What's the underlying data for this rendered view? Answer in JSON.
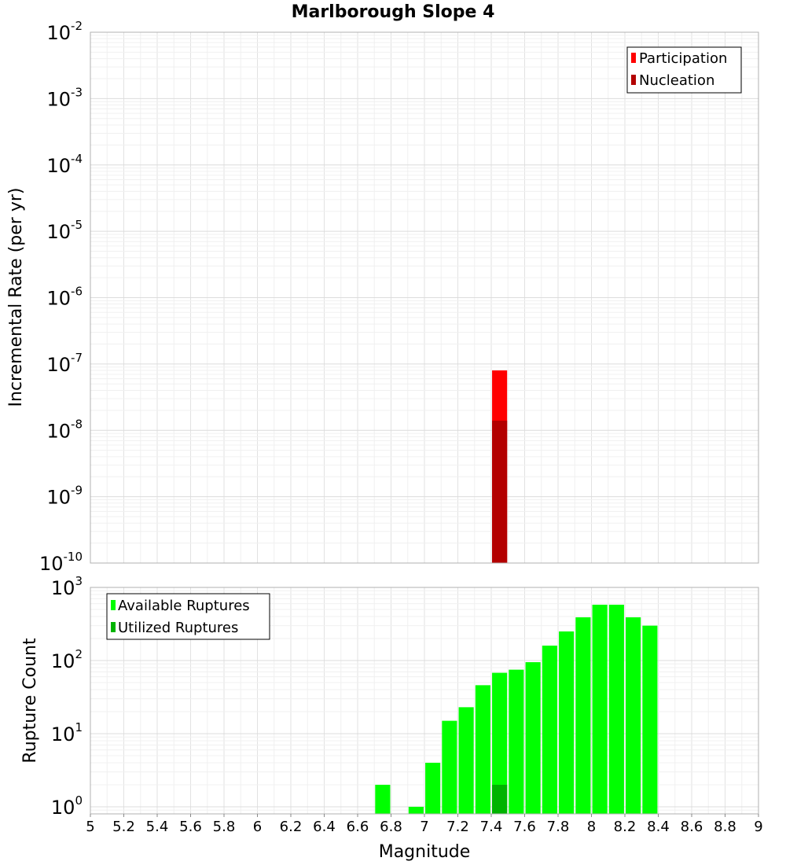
{
  "chart_data": [
    {
      "type": "bar",
      "panel": "top",
      "title": "Marlborough Slope 4",
      "xlabel": "Magnitude",
      "ylabel": "Incremental Rate (per yr)",
      "yscale": "log",
      "xlim": [
        5,
        9
      ],
      "ylim": [
        1e-10,
        0.01
      ],
      "ytick_exponents": [
        -10,
        -9,
        -8,
        -7,
        -6,
        -5,
        -4,
        -3,
        -2
      ],
      "legend_position": "top-right",
      "bar_width": 0.09,
      "series": [
        {
          "name": "Participation",
          "color": "#ff0000",
          "x": [
            7.45
          ],
          "values": [
            8e-08
          ]
        },
        {
          "name": "Nucleation",
          "color": "#b30000",
          "x": [
            7.45
          ],
          "values": [
            1.4e-08
          ]
        }
      ]
    },
    {
      "type": "bar",
      "panel": "bottom",
      "xlabel": "Magnitude",
      "ylabel": "Rupture Count",
      "yscale": "log",
      "xlim": [
        5,
        9
      ],
      "ylim": [
        0.8,
        1000
      ],
      "ytick_exponents": [
        0,
        1,
        2,
        3
      ],
      "xticks": [
        "5",
        "5.2",
        "5.4",
        "5.6",
        "5.8",
        "6",
        "6.2",
        "6.4",
        "6.6",
        "6.8",
        "7",
        "7.2",
        "7.4",
        "7.6",
        "7.8",
        "8",
        "8.2",
        "8.4",
        "8.6",
        "8.8",
        "9"
      ],
      "legend_position": "top-left",
      "bar_width": 0.09,
      "series": [
        {
          "name": "Available Ruptures",
          "color": "#00ff00",
          "x": [
            6.75,
            6.95,
            7.05,
            7.15,
            7.25,
            7.35,
            7.45,
            7.55,
            7.65,
            7.75,
            7.85,
            7.95,
            8.05,
            8.15,
            8.25,
            8.35
          ],
          "values": [
            2,
            1,
            4,
            15,
            23,
            46,
            68,
            75,
            95,
            160,
            250,
            390,
            580,
            580,
            390,
            300
          ]
        },
        {
          "name": "Utilized Ruptures",
          "color": "#00b300",
          "x": [
            7.45
          ],
          "values": [
            2
          ]
        }
      ]
    }
  ]
}
